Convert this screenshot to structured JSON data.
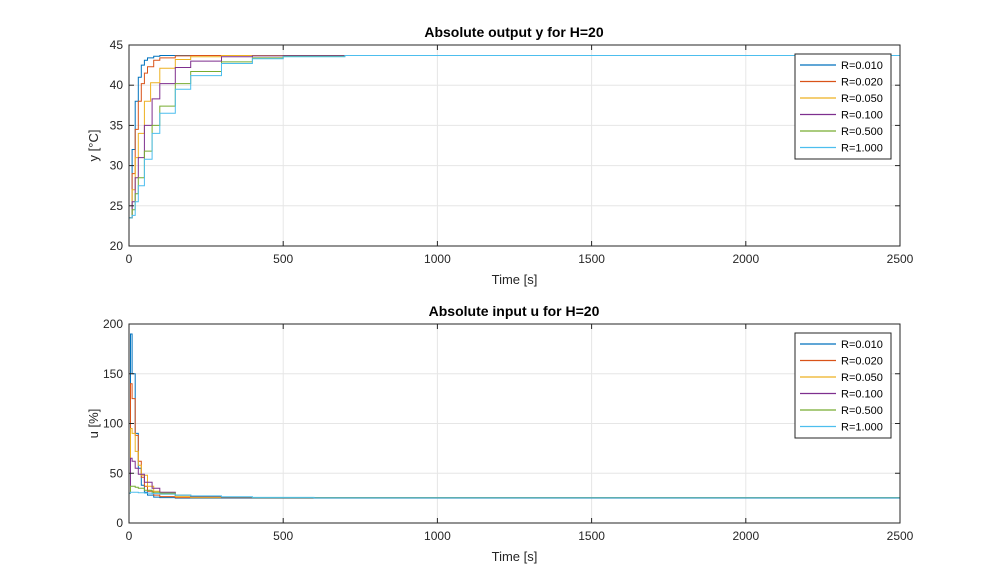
{
  "chart_data": [
    {
      "type": "line",
      "title": "Absolute output y for H=20",
      "xlabel": "Time [s]",
      "ylabel": "y [°C]",
      "xlim": [
        0,
        2500
      ],
      "ylim": [
        20,
        45
      ],
      "xticks": [
        "0",
        "500",
        "1000",
        "1500",
        "2000",
        "2500"
      ],
      "yticks": [
        "20",
        "25",
        "30",
        "35",
        "40",
        "45"
      ],
      "grid": true,
      "legend": "top-right",
      "steady_value": 43.7,
      "initial_value": 23.5,
      "series": [
        {
          "name": "R=0.010",
          "color": "#0072bd",
          "x": [
            0,
            10,
            20,
            30,
            40,
            50,
            60,
            80,
            100,
            150,
            200,
            2500
          ],
          "y": [
            23.5,
            32,
            38,
            41,
            42.5,
            43.1,
            43.4,
            43.6,
            43.7,
            43.7,
            43.7,
            43.7
          ]
        },
        {
          "name": "R=0.020",
          "color": "#d95319",
          "x": [
            0,
            10,
            20,
            30,
            40,
            50,
            60,
            80,
            100,
            150,
            200,
            2500
          ],
          "y": [
            23.5,
            29,
            34.5,
            38,
            40.2,
            41.5,
            42.3,
            43.1,
            43.4,
            43.65,
            43.7,
            43.7
          ]
        },
        {
          "name": "R=0.050",
          "color": "#edb120",
          "x": [
            0,
            10,
            20,
            30,
            50,
            70,
            100,
            150,
            200,
            300,
            400,
            2500
          ],
          "y": [
            23.5,
            27,
            31,
            34,
            38,
            40.3,
            42.1,
            43.2,
            43.55,
            43.7,
            43.7,
            43.7
          ]
        },
        {
          "name": "R=0.100",
          "color": "#7e2f8e",
          "x": [
            0,
            10,
            20,
            30,
            50,
            75,
            100,
            150,
            200,
            300,
            400,
            500,
            2500
          ],
          "y": [
            23.5,
            25.5,
            28.5,
            31,
            35,
            38.3,
            40.2,
            42.2,
            43.0,
            43.55,
            43.65,
            43.7,
            43.7
          ]
        },
        {
          "name": "R=0.500",
          "color": "#77ac30",
          "x": [
            0,
            10,
            20,
            30,
            50,
            75,
            100,
            150,
            200,
            300,
            400,
            500,
            700,
            900,
            2500
          ],
          "y": [
            23.5,
            24.5,
            26.5,
            28.5,
            31.8,
            35,
            37.4,
            40.2,
            41.7,
            42.9,
            43.4,
            43.6,
            43.7,
            43.7,
            43.7
          ]
        },
        {
          "name": "R=1.000",
          "color": "#4dbeee",
          "x": [
            0,
            10,
            20,
            30,
            50,
            75,
            100,
            150,
            200,
            300,
            400,
            500,
            700,
            1000,
            2500
          ],
          "y": [
            23.5,
            23.8,
            25.5,
            27.5,
            30.8,
            34,
            36.5,
            39.5,
            41.2,
            42.7,
            43.3,
            43.55,
            43.7,
            43.7,
            43.7
          ]
        }
      ]
    },
    {
      "type": "line",
      "title": "Absolute input u for H=20",
      "xlabel": "Time [s]",
      "ylabel": "u [%]",
      "xlim": [
        0,
        2500
      ],
      "ylim": [
        0,
        200
      ],
      "xticks": [
        "0",
        "500",
        "1000",
        "1500",
        "2000",
        "2500"
      ],
      "yticks": [
        "0",
        "50",
        "100",
        "150",
        "200"
      ],
      "grid": true,
      "legend": "top-right",
      "steady_value": 25,
      "series": [
        {
          "name": "R=0.010",
          "color": "#0072bd",
          "x": [
            0,
            5,
            10,
            20,
            30,
            40,
            50,
            60,
            80,
            100,
            150,
            2500
          ],
          "y": [
            30,
            190,
            150,
            90,
            55,
            38,
            31,
            28,
            26,
            25.5,
            25,
            25
          ]
        },
        {
          "name": "R=0.020",
          "color": "#d95319",
          "x": [
            0,
            5,
            10,
            20,
            30,
            40,
            50,
            60,
            80,
            100,
            150,
            2500
          ],
          "y": [
            30,
            140,
            125,
            88,
            62,
            46,
            37,
            32,
            28,
            26.5,
            25.5,
            25
          ]
        },
        {
          "name": "R=0.050",
          "color": "#edb120",
          "x": [
            0,
            5,
            10,
            20,
            30,
            40,
            60,
            80,
            100,
            150,
            200,
            2500
          ],
          "y": [
            30,
            95,
            90,
            72,
            58,
            48,
            37,
            32,
            29,
            26.5,
            25.5,
            25
          ]
        },
        {
          "name": "R=0.100",
          "color": "#7e2f8e",
          "x": [
            0,
            5,
            10,
            20,
            30,
            50,
            75,
            100,
            150,
            200,
            300,
            2500
          ],
          "y": [
            30,
            65,
            62,
            55,
            49,
            41,
            35,
            31,
            28,
            26.5,
            25.5,
            25
          ]
        },
        {
          "name": "R=0.500",
          "color": "#77ac30",
          "x": [
            0,
            5,
            10,
            20,
            30,
            50,
            75,
            100,
            150,
            200,
            300,
            400,
            2500
          ],
          "y": [
            30,
            37,
            37,
            36,
            35,
            33,
            31,
            30,
            28,
            27,
            26,
            25.5,
            25
          ]
        },
        {
          "name": "R=1.000",
          "color": "#4dbeee",
          "x": [
            0,
            5,
            10,
            20,
            30,
            50,
            75,
            100,
            150,
            200,
            300,
            400,
            600,
            2500
          ],
          "y": [
            30,
            31,
            31,
            31,
            30.5,
            30,
            29.5,
            29,
            28,
            27.2,
            26.3,
            25.7,
            25.2,
            25
          ]
        }
      ]
    }
  ]
}
